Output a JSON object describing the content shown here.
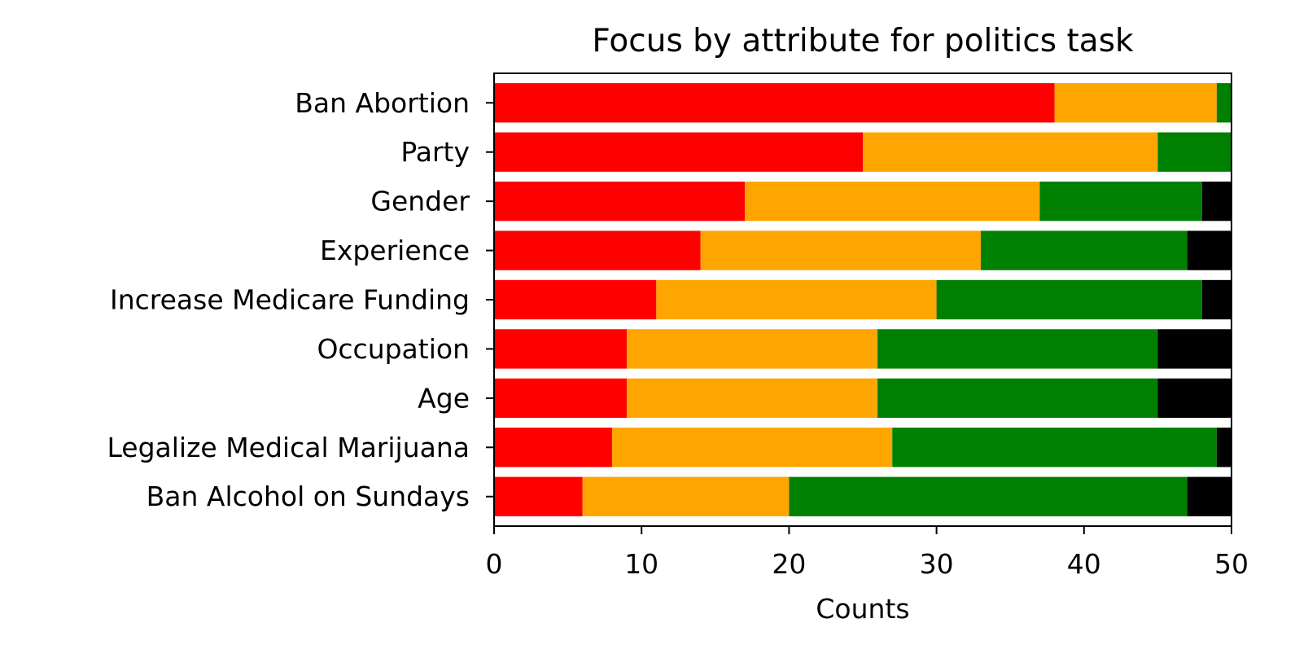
{
  "chart_data": {
    "type": "bar",
    "orientation": "horizontal",
    "stacked": true,
    "title": "Focus by attribute for politics task",
    "xlabel": "Counts",
    "ylabel": "",
    "xlim": [
      0,
      50
    ],
    "xticks": [
      0,
      10,
      20,
      30,
      40,
      50
    ],
    "grid": false,
    "legend": "none",
    "categories": [
      "Ban Abortion",
      "Party",
      "Gender",
      "Experience",
      "Increase Medicare Funding",
      "Occupation",
      "Age",
      "Legalize Medical Marijuana",
      "Ban Alcohol on Sundays"
    ],
    "series": [
      {
        "color": "#ff0000",
        "values": [
          38,
          25,
          17,
          14,
          11,
          9,
          9,
          8,
          6
        ]
      },
      {
        "color": "#ffa500",
        "values": [
          11,
          20,
          20,
          19,
          19,
          17,
          17,
          19,
          14
        ]
      },
      {
        "color": "#008000",
        "values": [
          1,
          5,
          11,
          14,
          18,
          19,
          19,
          22,
          27
        ]
      },
      {
        "color": "#000000",
        "values": [
          0,
          0,
          2,
          3,
          2,
          5,
          5,
          1,
          3
        ]
      }
    ]
  }
}
